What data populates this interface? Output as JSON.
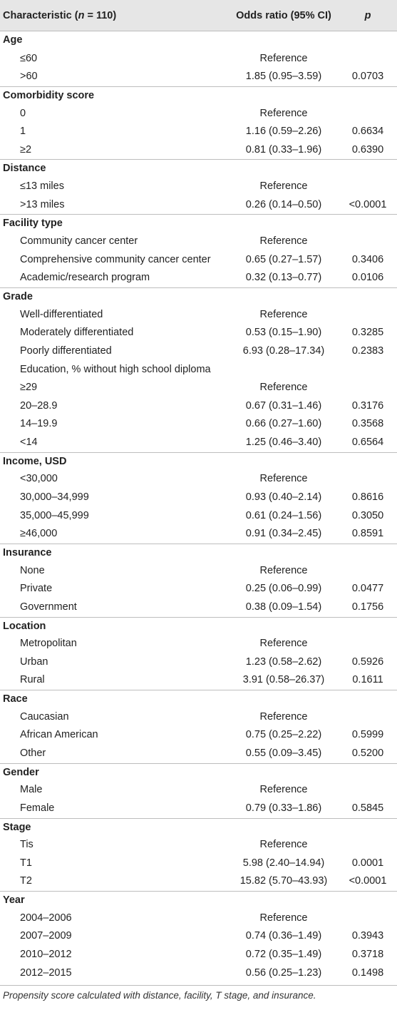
{
  "header": {
    "characteristic_prefix": "Characteristic (",
    "characteristic_n": "n",
    "characteristic_suffix": " = 110)",
    "odds_ratio": "Odds ratio (95% CI)",
    "p": "p"
  },
  "rows": [
    {
      "type": "section",
      "label": "Age",
      "or": "",
      "p": ""
    },
    {
      "type": "sub",
      "label": "≤60",
      "or": "Reference",
      "p": ""
    },
    {
      "type": "sub",
      "label": ">60",
      "or": "1.85 (0.95–3.59)",
      "p": "0.0703"
    },
    {
      "type": "section",
      "label": "Comorbidity score",
      "or": "",
      "p": ""
    },
    {
      "type": "sub",
      "label": "0",
      "or": "Reference",
      "p": ""
    },
    {
      "type": "sub",
      "label": "1",
      "or": "1.16 (0.59–2.26)",
      "p": "0.6634"
    },
    {
      "type": "sub",
      "label": "≥2",
      "or": "0.81 (0.33–1.96)",
      "p": "0.6390"
    },
    {
      "type": "section",
      "label": "Distance",
      "or": "",
      "p": ""
    },
    {
      "type": "sub",
      "label": "≤13 miles",
      "or": "Reference",
      "p": ""
    },
    {
      "type": "sub",
      "label": ">13 miles",
      "or": "0.26 (0.14–0.50)",
      "p": "<0.0001"
    },
    {
      "type": "section",
      "label": "Facility type",
      "or": "",
      "p": ""
    },
    {
      "type": "sub",
      "label": "Community cancer center",
      "or": "Reference",
      "p": ""
    },
    {
      "type": "sub",
      "label": "Comprehensive community cancer center",
      "or": "0.65 (0.27–1.57)",
      "p": "0.3406"
    },
    {
      "type": "sub",
      "label": "Academic/research program",
      "or": "0.32 (0.13–0.77)",
      "p": "0.0106"
    },
    {
      "type": "section",
      "label": "Grade",
      "or": "",
      "p": ""
    },
    {
      "type": "sub",
      "label": "Well-differentiated",
      "or": "Reference",
      "p": ""
    },
    {
      "type": "sub",
      "label": "Moderately differentiated",
      "or": "0.53 (0.15–1.90)",
      "p": "0.3285"
    },
    {
      "type": "sub",
      "label": "Poorly differentiated",
      "or": "6.93 (0.28–17.34)",
      "p": "0.2383"
    },
    {
      "type": "sub",
      "label": "Education, % without high school diploma",
      "or": "",
      "p": ""
    },
    {
      "type": "sub",
      "label": "≥29",
      "or": "Reference",
      "p": ""
    },
    {
      "type": "sub",
      "label": "20–28.9",
      "or": "0.67 (0.31–1.46)",
      "p": "0.3176"
    },
    {
      "type": "sub",
      "label": "14–19.9",
      "or": "0.66 (0.27–1.60)",
      "p": "0.3568"
    },
    {
      "type": "sub",
      "label": "<14",
      "or": "1.25 (0.46–3.40)",
      "p": "0.6564"
    },
    {
      "type": "section",
      "label": "Income, USD",
      "or": "",
      "p": ""
    },
    {
      "type": "sub",
      "label": "<30,000",
      "or": "Reference",
      "p": ""
    },
    {
      "type": "sub",
      "label": "30,000–34,999",
      "or": "0.93 (0.40–2.14)",
      "p": "0.8616"
    },
    {
      "type": "sub",
      "label": "35,000–45,999",
      "or": "0.61 (0.24–1.56)",
      "p": "0.3050"
    },
    {
      "type": "sub",
      "label": "≥46,000",
      "or": "0.91 (0.34–2.45)",
      "p": "0.8591"
    },
    {
      "type": "section",
      "label": "Insurance",
      "or": "",
      "p": ""
    },
    {
      "type": "sub",
      "label": "None",
      "or": "Reference",
      "p": ""
    },
    {
      "type": "sub",
      "label": "Private",
      "or": "0.25 (0.06–0.99)",
      "p": "0.0477"
    },
    {
      "type": "sub",
      "label": "Government",
      "or": "0.38 (0.09–1.54)",
      "p": "0.1756"
    },
    {
      "type": "section",
      "label": "Location",
      "or": "",
      "p": ""
    },
    {
      "type": "sub",
      "label": "Metropolitan",
      "or": "Reference",
      "p": ""
    },
    {
      "type": "sub",
      "label": "Urban",
      "or": "1.23 (0.58–2.62)",
      "p": "0.5926"
    },
    {
      "type": "sub",
      "label": "Rural",
      "or": "3.91 (0.58–26.37)",
      "p": "0.1611"
    },
    {
      "type": "section",
      "label": "Race",
      "or": "",
      "p": ""
    },
    {
      "type": "sub",
      "label": "Caucasian",
      "or": "Reference",
      "p": ""
    },
    {
      "type": "sub",
      "label": "African American",
      "or": "0.75 (0.25–2.22)",
      "p": "0.5999"
    },
    {
      "type": "sub",
      "label": "Other",
      "or": "0.55 (0.09–3.45)",
      "p": "0.5200"
    },
    {
      "type": "section",
      "label": "Gender",
      "or": "",
      "p": ""
    },
    {
      "type": "sub",
      "label": "Male",
      "or": "Reference",
      "p": ""
    },
    {
      "type": "sub",
      "label": "Female",
      "or": "0.79 (0.33–1.86)",
      "p": "0.5845"
    },
    {
      "type": "section",
      "label": "Stage",
      "or": "",
      "p": ""
    },
    {
      "type": "sub",
      "label": "Tis",
      "or": "Reference",
      "p": ""
    },
    {
      "type": "sub",
      "label": "T1",
      "or": "5.98 (2.40–14.94)",
      "p": "0.0001"
    },
    {
      "type": "sub",
      "label": "T2",
      "or": "15.82 (5.70–43.93)",
      "p": "<0.0001"
    },
    {
      "type": "section",
      "label": "Year",
      "or": "",
      "p": ""
    },
    {
      "type": "sub",
      "label": "2004–2006",
      "or": "Reference",
      "p": ""
    },
    {
      "type": "sub",
      "label": "2007–2009",
      "or": "0.74 (0.36–1.49)",
      "p": "0.3943"
    },
    {
      "type": "sub",
      "label": "2010–2012",
      "or": "0.72 (0.35–1.49)",
      "p": "0.3718"
    },
    {
      "type": "sub",
      "label": "2012–2015",
      "or": "0.56 (0.25–1.23)",
      "p": "0.1498"
    }
  ],
  "footnote": "Propensity score calculated with distance, facility, T stage, and insurance."
}
